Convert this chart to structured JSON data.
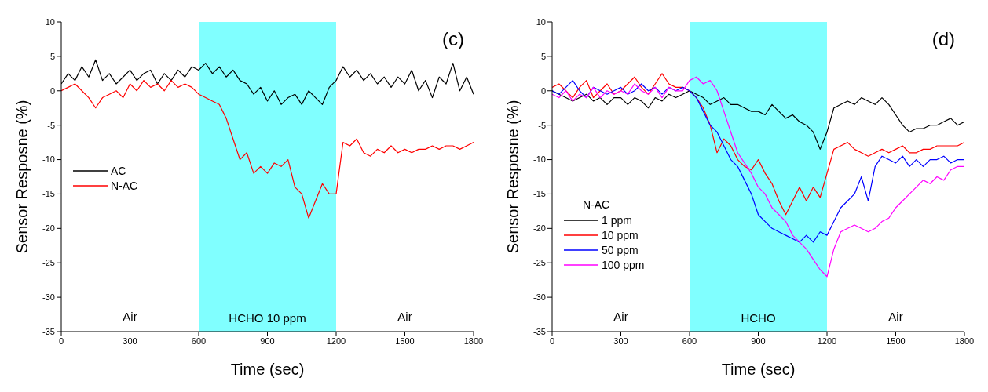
{
  "chart_data": [
    {
      "type": "line",
      "title": "(c)",
      "xlabel": "Time (sec)",
      "ylabel": "Sensor Resposne (%)",
      "x": [
        0,
        30,
        60,
        90,
        120,
        150,
        180,
        210,
        240,
        270,
        300,
        330,
        360,
        390,
        420,
        450,
        480,
        510,
        540,
        570,
        600,
        630,
        660,
        690,
        720,
        750,
        780,
        810,
        840,
        870,
        900,
        930,
        960,
        990,
        1020,
        1050,
        1080,
        1110,
        1140,
        1170,
        1200,
        1230,
        1260,
        1290,
        1320,
        1350,
        1380,
        1410,
        1440,
        1470,
        1500,
        1530,
        1560,
        1590,
        1620,
        1650,
        1680,
        1710,
        1740,
        1770,
        1800
      ],
      "series": [
        {
          "name": "AC",
          "color": "#000000",
          "values": [
            1,
            2.5,
            1.5,
            3.5,
            2,
            4.5,
            1.5,
            2.5,
            1,
            2,
            3,
            1.5,
            2.5,
            3,
            1,
            2.5,
            1.5,
            3,
            2,
            3.5,
            3,
            4,
            2.5,
            3.5,
            2,
            3,
            1.5,
            1,
            -0.5,
            0.5,
            -1.5,
            0,
            -2,
            -1,
            -0.5,
            -2,
            0,
            -1,
            -2,
            0.5,
            1.5,
            3.5,
            2,
            3,
            1.5,
            2.5,
            1,
            2,
            0.5,
            2,
            1,
            3,
            0,
            1.5,
            -1,
            2,
            1,
            4,
            0,
            2,
            -0.5
          ]
        },
        {
          "name": "N-AC",
          "color": "#ff0000",
          "values": [
            0,
            0.5,
            1,
            0,
            -1,
            -2.5,
            -1,
            -0.5,
            0,
            -1,
            1,
            0,
            1.5,
            0.5,
            1,
            0,
            1.5,
            0.5,
            1,
            0.5,
            -0.5,
            -1,
            -1.5,
            -2,
            -4,
            -7,
            -10,
            -9,
            -12,
            -11,
            -12,
            -10.5,
            -11,
            -10,
            -14,
            -15,
            -18.5,
            -16,
            -13.5,
            -15,
            -15,
            -7.5,
            -8,
            -7,
            -9,
            -9.5,
            -8.5,
            -9,
            -8,
            -9,
            -8.5,
            -9,
            -8.5,
            -8.5,
            -8,
            -8.5,
            -8,
            -8,
            -8.5,
            -8,
            -7.5
          ]
        }
      ],
      "xlim": [
        0,
        1800
      ],
      "xticks": [
        0,
        300,
        600,
        900,
        1200,
        1500,
        1800
      ],
      "ylim": [
        -35,
        10
      ],
      "yticks": [
        -35,
        -30,
        -25,
        -20,
        -15,
        -10,
        -5,
        0,
        5,
        10
      ],
      "bands": [
        {
          "axis": "x",
          "from": 600,
          "to": 1200,
          "label": "HCHO 10 ppm",
          "color": "#80ffff"
        }
      ],
      "annotations": [
        "Air",
        "Air"
      ],
      "legend": "left"
    },
    {
      "type": "line",
      "title": "(d)",
      "xlabel": "Time (sec)",
      "ylabel": "Sensor Resposne (%)",
      "legend_title": "N-AC",
      "x": [
        0,
        30,
        60,
        90,
        120,
        150,
        180,
        210,
        240,
        270,
        300,
        330,
        360,
        390,
        420,
        450,
        480,
        510,
        540,
        570,
        600,
        630,
        660,
        690,
        720,
        750,
        780,
        810,
        840,
        870,
        900,
        930,
        960,
        990,
        1020,
        1050,
        1080,
        1110,
        1140,
        1170,
        1200,
        1230,
        1260,
        1290,
        1320,
        1350,
        1380,
        1410,
        1440,
        1470,
        1500,
        1530,
        1560,
        1590,
        1620,
        1650,
        1680,
        1710,
        1740,
        1770,
        1800
      ],
      "series": [
        {
          "name": "1 ppm",
          "color": "#000000",
          "values": [
            0,
            -0.5,
            -1,
            -1.5,
            -1,
            -0.5,
            -1.5,
            -1,
            -2,
            -1,
            -1,
            -2,
            -1,
            -1.5,
            -2.5,
            -1,
            -1.5,
            -0.5,
            -1,
            -0.5,
            0,
            -0.5,
            -1,
            -2,
            -1.5,
            -1,
            -2,
            -2,
            -2.5,
            -3,
            -3,
            -3.5,
            -2,
            -3,
            -4,
            -3.5,
            -4.5,
            -5,
            -6,
            -8.5,
            -6,
            -2.5,
            -2,
            -1.5,
            -2,
            -1,
            -1.5,
            -2,
            -1,
            -2,
            -3.5,
            -5,
            -6,
            -5.5,
            -5.5,
            -5,
            -5,
            -4.5,
            -4,
            -5,
            -4.5
          ]
        },
        {
          "name": "10 ppm",
          "color": "#ff0000",
          "values": [
            0.5,
            1,
            0,
            -1,
            0.5,
            1.5,
            -1,
            0,
            1,
            -0.5,
            0,
            1,
            2,
            0.5,
            -0.5,
            1,
            2.5,
            1,
            0.5,
            0.5,
            0,
            -1,
            -2.5,
            -5,
            -9,
            -7,
            -8,
            -10,
            -11,
            -11.5,
            -10,
            -12,
            -13.5,
            -16,
            -18,
            -16,
            -14,
            -16,
            -14,
            -15.5,
            -12,
            -8.5,
            -8,
            -7.5,
            -8.5,
            -9,
            -9.5,
            -9,
            -8.5,
            -9,
            -8.5,
            -8,
            -9,
            -9,
            -8.5,
            -8.5,
            -8,
            -8,
            -8,
            -8,
            -7.5
          ]
        },
        {
          "name": "50 ppm",
          "color": "#0000ff",
          "values": [
            0,
            -0.5,
            0.5,
            1.5,
            0,
            -1,
            0.5,
            0,
            -0.5,
            0,
            0.5,
            -0.5,
            0,
            1,
            0,
            0.5,
            -0.5,
            0.5,
            0,
            0.5,
            0,
            -1,
            -3,
            -5,
            -6,
            -8,
            -10,
            -11,
            -13,
            -15,
            -18,
            -19,
            -20,
            -20.5,
            -21,
            -21.5,
            -22,
            -21,
            -22,
            -20.5,
            -21,
            -19,
            -17,
            -16,
            -15,
            -12.5,
            -16,
            -11,
            -9.5,
            -10,
            -10.5,
            -9.5,
            -11,
            -10,
            -11,
            -10,
            -10,
            -9.5,
            -10.5,
            -10,
            -10
          ]
        },
        {
          "name": "100 ppm",
          "color": "#ff00ff",
          "values": [
            -0.5,
            -1,
            0,
            -1.5,
            -0.5,
            -1,
            0.5,
            -1,
            0,
            -0.5,
            0,
            -0.5,
            1,
            0,
            -0.5,
            0.5,
            -1,
            0.5,
            0,
            0,
            1.5,
            2,
            1,
            1.5,
            0,
            -3,
            -6,
            -9,
            -10.5,
            -12,
            -14,
            -15,
            -17,
            -18,
            -19,
            -21,
            -22,
            -23,
            -24.5,
            -26,
            -27,
            -23,
            -20.5,
            -20,
            -19.5,
            -20,
            -20.5,
            -20,
            -19,
            -18.5,
            -17,
            -16,
            -15,
            -14,
            -13,
            -13.5,
            -12.5,
            -13,
            -11.5,
            -11,
            -11
          ]
        }
      ],
      "xlim": [
        0,
        1800
      ],
      "xticks": [
        0,
        300,
        600,
        900,
        1200,
        1500,
        1800
      ],
      "ylim": [
        -35,
        10
      ],
      "yticks": [
        -35,
        -30,
        -25,
        -20,
        -15,
        -10,
        -5,
        0,
        5,
        10
      ],
      "bands": [
        {
          "axis": "x",
          "from": 600,
          "to": 1200,
          "label": "HCHO",
          "color": "#80ffff"
        }
      ],
      "annotations": [
        "Air",
        "Air"
      ],
      "legend": "bottom left"
    }
  ]
}
